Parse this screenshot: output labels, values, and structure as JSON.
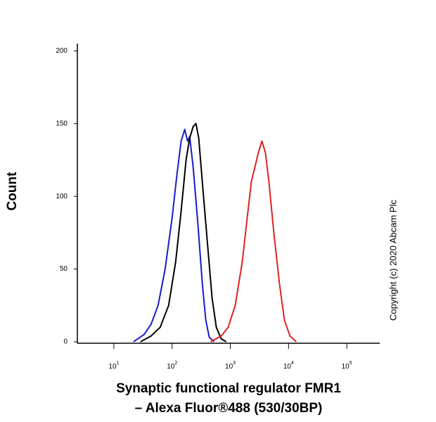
{
  "chart_data": {
    "type": "line",
    "title": "Synaptic functional regulator FMR1",
    "subtitle": "– Alexa Fluor®488 (530/30BP)",
    "y_label": "Count",
    "annotation": "Copyright (c) 2020 Abcam Plc",
    "x_log": true,
    "xlim": [
      2.36,
      368000
    ],
    "ylim": [
      -1,
      205
    ],
    "xticks": [
      {
        "value": 10,
        "label": "10",
        "exponent": "1"
      },
      {
        "value": 100,
        "label": "10",
        "exponent": "2"
      },
      {
        "value": 1000,
        "label": "10",
        "exponent": "3"
      },
      {
        "value": 10000,
        "label": "10",
        "exponent": "4"
      },
      {
        "value": 100000,
        "label": "10",
        "exponent": "5"
      }
    ],
    "yticks": [
      0,
      50,
      100,
      150,
      200
    ],
    "series": [
      {
        "color": "#1a1acc",
        "x": [
          21.7,
          33,
          43.5,
          57.4,
          75.9,
          100,
          121,
          143,
          165,
          184,
          200,
          230,
          279,
          330,
          379,
          435,
          528
        ],
        "values": [
          0,
          5,
          12,
          25,
          50,
          85,
          115,
          138,
          146,
          138,
          141,
          120,
          80,
          40,
          15,
          3,
          0
        ]
      },
      {
        "color": "#000000",
        "x": [
          28.7,
          43.5,
          62.4,
          87.1,
          115,
          143,
          174,
          200,
          230,
          257,
          287,
          330,
          400,
          486,
          574,
          697,
          847
        ],
        "values": [
          0,
          4,
          10,
          25,
          55,
          90,
          125,
          140,
          148,
          150,
          140,
          110,
          70,
          30,
          10,
          2,
          0
        ]
      },
      {
        "color": "#dd2222",
        "x": [
          460,
          697,
          920,
          1213,
          1603,
          1945,
          2297,
          2640,
          3034,
          3486,
          4003,
          4600,
          5584,
          6970,
          8470,
          10570,
          13580
        ],
        "values": [
          0,
          4,
          10,
          25,
          55,
          85,
          110,
          120,
          130,
          138,
          130,
          110,
          75,
          40,
          15,
          4,
          0
        ]
      }
    ]
  }
}
